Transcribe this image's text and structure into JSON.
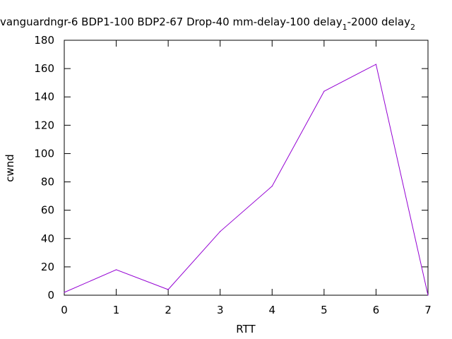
{
  "chart_data": {
    "type": "line",
    "title": "vanguardngr-6 BDP1-100 BDP2-67 Drop-40 mm-delay-100 delay",
    "title_sub1": "1",
    "title_mid": "-2000 delay",
    "title_sub2": "2",
    "xlabel": "RTT",
    "ylabel": "cwnd",
    "xlim": [
      0,
      7
    ],
    "ylim": [
      0,
      180
    ],
    "x_ticks": [
      0,
      1,
      2,
      3,
      4,
      5,
      6,
      7
    ],
    "y_ticks": [
      0,
      20,
      40,
      60,
      80,
      100,
      120,
      140,
      160,
      180
    ],
    "grid": false,
    "series": [
      {
        "x": [
          0,
          1,
          2,
          3,
          4,
          5,
          6,
          7
        ],
        "values": [
          2,
          18,
          4,
          45,
          77,
          144,
          163,
          0
        ],
        "color": "#9400d3"
      }
    ]
  }
}
